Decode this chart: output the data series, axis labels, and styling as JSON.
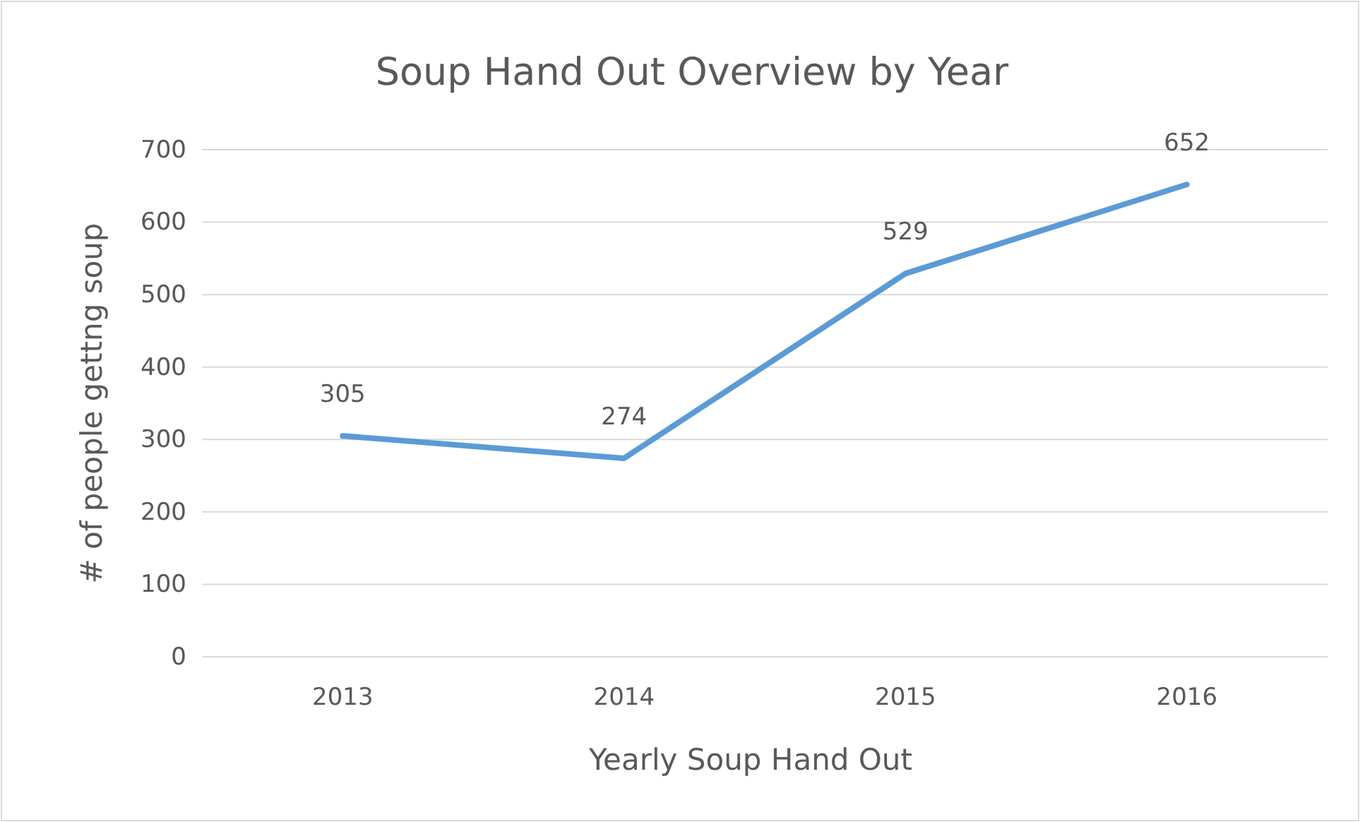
{
  "chart_data": {
    "type": "line",
    "title": "Soup Hand Out Overview by Year",
    "xlabel": "Yearly Soup Hand Out",
    "ylabel": "# of people gettng soup",
    "categories": [
      "2013",
      "2014",
      "2015",
      "2016"
    ],
    "series": [
      {
        "color": "#5b9bd5",
        "values": [
          305,
          274,
          529,
          652
        ]
      }
    ],
    "ylim": [
      0,
      700
    ],
    "yticks": [
      0,
      100,
      200,
      300,
      400,
      500,
      600,
      700
    ],
    "grid": "y",
    "data_labels": true,
    "marker": "none",
    "line_style": "solid"
  }
}
